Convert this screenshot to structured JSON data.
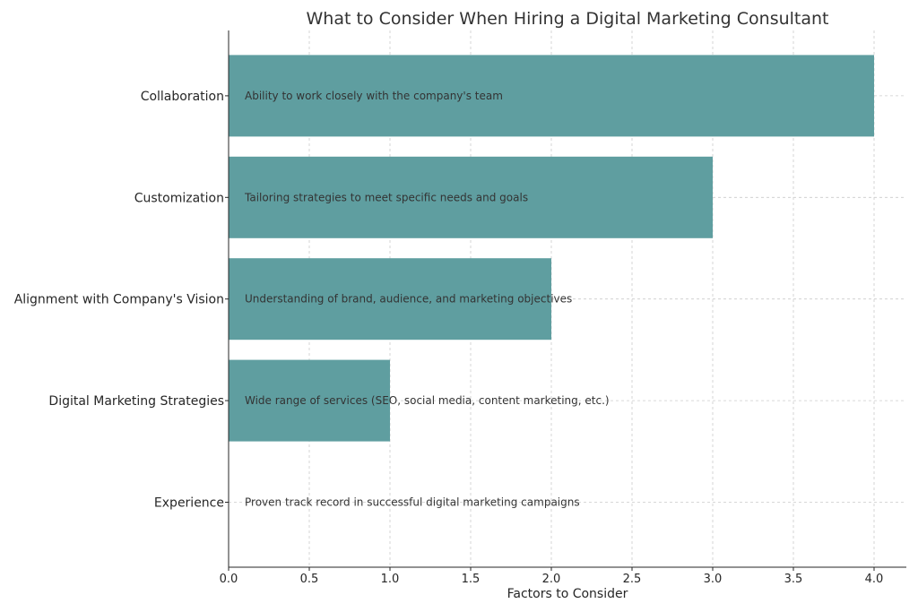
{
  "chart_data": {
    "type": "bar",
    "orientation": "horizontal",
    "title": "What to Consider When Hiring a Digital Marketing Consultant",
    "xlabel": "Factors to Consider",
    "ylabel": "",
    "categories": [
      "Experience",
      "Digital Marketing Strategies",
      "Alignment with Company's Vision",
      "Customization",
      "Collaboration"
    ],
    "values": [
      0,
      1,
      2,
      3,
      4
    ],
    "annotations": [
      "Proven track record in successful digital marketing campaigns",
      "Wide range of services (SEO, social media, content marketing, etc.)",
      "Understanding of brand, audience, and marketing objectives",
      "Tailoring strategies to meet specific needs and goals",
      "Ability to work closely with the company's team"
    ],
    "xlim": [
      0,
      4.2
    ],
    "xticks": [
      "0.0",
      "0.5",
      "1.0",
      "1.5",
      "2.0",
      "2.5",
      "3.0",
      "3.5",
      "4.0"
    ],
    "grid": true,
    "bar_color": "#5f9ea0"
  }
}
